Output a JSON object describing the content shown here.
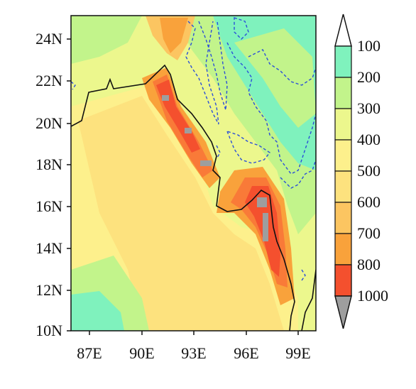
{
  "map": {
    "lat_ticks": [
      "24N",
      "22N",
      "20N",
      "18N",
      "16N",
      "14N",
      "12N",
      "10N"
    ],
    "lon_ticks": [
      "87E",
      "90E",
      "93E",
      "96E",
      "99E"
    ],
    "lat_range": [
      10,
      25
    ],
    "lon_range": [
      86,
      100
    ],
    "colors": {
      "land_outline": "#111111",
      "dashed_contour": "#2b4fd8",
      "over_value": "#9e9e9e"
    }
  },
  "colorbar": {
    "levels": [
      "100",
      "200",
      "300",
      "400",
      "500",
      "600",
      "700",
      "800",
      "1000"
    ],
    "colors": [
      "#7ff2bd",
      "#c2f48b",
      "#ecf78d",
      "#fdf08c",
      "#fde27e",
      "#fcc561",
      "#f9a23b",
      "#f97a38",
      "#f4502e"
    ],
    "extend_top_color": "#ffffff",
    "extend_bottom_color": "#9e9e9e"
  }
}
